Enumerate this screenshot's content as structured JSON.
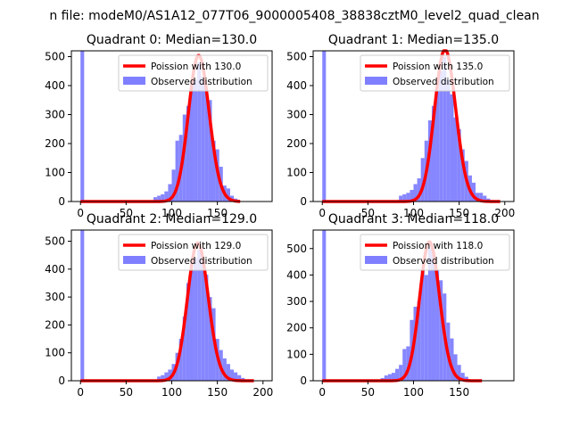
{
  "figure_title": "n file: modeM0/AS1A12_077T06_9000005408_38838cztM0_level2_quad_clean",
  "colors": {
    "poisson": "#ff0000",
    "observed": "#7f7fff",
    "axis": "#000000"
  },
  "chart_data": [
    {
      "type": "bar",
      "title": "Quadrant 0: Median=130.0",
      "median": 130.0,
      "xlim": [
        -10,
        210
      ],
      "ylim": [
        0,
        520
      ],
      "xticks": [
        0,
        50,
        100,
        150
      ],
      "yticks": [
        0,
        100,
        200,
        300,
        400,
        500
      ],
      "bin_width": 4,
      "legend": {
        "position": "top-right",
        "entries": [
          "Poission with 130.0",
          "Observed distribution"
        ]
      },
      "series": [
        {
          "name": "Poission with 130.0",
          "type": "line",
          "x_range": [
            0,
            175
          ]
        },
        {
          "name": "Observed distribution",
          "type": "hist",
          "bins": [
            {
              "x": 0,
              "y": 520
            },
            {
              "x": 80,
              "y": 15
            },
            {
              "x": 84,
              "y": 20
            },
            {
              "x": 88,
              "y": 25
            },
            {
              "x": 92,
              "y": 35
            },
            {
              "x": 96,
              "y": 60
            },
            {
              "x": 100,
              "y": 110
            },
            {
              "x": 104,
              "y": 210
            },
            {
              "x": 108,
              "y": 230
            },
            {
              "x": 112,
              "y": 300
            },
            {
              "x": 116,
              "y": 330
            },
            {
              "x": 120,
              "y": 400
            },
            {
              "x": 124,
              "y": 420
            },
            {
              "x": 128,
              "y": 480
            },
            {
              "x": 132,
              "y": 430
            },
            {
              "x": 136,
              "y": 380
            },
            {
              "x": 140,
              "y": 350
            },
            {
              "x": 144,
              "y": 210
            },
            {
              "x": 148,
              "y": 180
            },
            {
              "x": 152,
              "y": 120
            },
            {
              "x": 156,
              "y": 55
            },
            {
              "x": 160,
              "y": 45
            },
            {
              "x": 164,
              "y": 20
            },
            {
              "x": 168,
              "y": 10
            }
          ]
        }
      ]
    },
    {
      "type": "bar",
      "title": "Quadrant 1: Median=135.0",
      "median": 135.0,
      "xlim": [
        -10,
        210
      ],
      "ylim": [
        0,
        520
      ],
      "xticks": [
        0,
        50,
        100,
        150,
        200
      ],
      "yticks": [
        0,
        100,
        200,
        300,
        400,
        500
      ],
      "bin_width": 4,
      "legend": {
        "position": "top-right",
        "entries": [
          "Poission with 135.0",
          "Observed distribution"
        ]
      },
      "series": [
        {
          "name": "Poission with 135.0",
          "type": "line",
          "x_range": [
            0,
            195
          ]
        },
        {
          "name": "Observed distribution",
          "type": "hist",
          "bins": [
            {
              "x": 0,
              "y": 520
            },
            {
              "x": 84,
              "y": 20
            },
            {
              "x": 88,
              "y": 25
            },
            {
              "x": 92,
              "y": 30
            },
            {
              "x": 96,
              "y": 40
            },
            {
              "x": 100,
              "y": 60
            },
            {
              "x": 104,
              "y": 80
            },
            {
              "x": 108,
              "y": 150
            },
            {
              "x": 112,
              "y": 210
            },
            {
              "x": 116,
              "y": 280
            },
            {
              "x": 120,
              "y": 330
            },
            {
              "x": 124,
              "y": 380
            },
            {
              "x": 128,
              "y": 450
            },
            {
              "x": 132,
              "y": 500
            },
            {
              "x": 136,
              "y": 420
            },
            {
              "x": 140,
              "y": 370
            },
            {
              "x": 144,
              "y": 290
            },
            {
              "x": 148,
              "y": 250
            },
            {
              "x": 152,
              "y": 180
            },
            {
              "x": 156,
              "y": 140
            },
            {
              "x": 160,
              "y": 90
            },
            {
              "x": 164,
              "y": 65
            },
            {
              "x": 168,
              "y": 30
            },
            {
              "x": 172,
              "y": 30
            },
            {
              "x": 176,
              "y": 20
            },
            {
              "x": 180,
              "y": 10
            },
            {
              "x": 184,
              "y": 5
            }
          ]
        }
      ]
    },
    {
      "type": "bar",
      "title": "Quadrant 2: Median=129.0",
      "median": 129.0,
      "xlim": [
        -10,
        210
      ],
      "ylim": [
        0,
        540
      ],
      "xticks": [
        0,
        50,
        100,
        150,
        200
      ],
      "yticks": [
        0,
        100,
        200,
        300,
        400,
        500
      ],
      "bin_width": 4,
      "legend": {
        "position": "top-right",
        "entries": [
          "Poission with 129.0",
          "Observed distribution"
        ]
      },
      "series": [
        {
          "name": "Poission with 129.0",
          "type": "line",
          "x_range": [
            0,
            190
          ]
        },
        {
          "name": "Observed distribution",
          "type": "hist",
          "bins": [
            {
              "x": 0,
              "y": 540
            },
            {
              "x": 84,
              "y": 15
            },
            {
              "x": 88,
              "y": 20
            },
            {
              "x": 92,
              "y": 30
            },
            {
              "x": 96,
              "y": 40
            },
            {
              "x": 100,
              "y": 60
            },
            {
              "x": 104,
              "y": 100
            },
            {
              "x": 108,
              "y": 150
            },
            {
              "x": 112,
              "y": 230
            },
            {
              "x": 116,
              "y": 350
            },
            {
              "x": 120,
              "y": 400
            },
            {
              "x": 124,
              "y": 440
            },
            {
              "x": 128,
              "y": 470
            },
            {
              "x": 132,
              "y": 430
            },
            {
              "x": 136,
              "y": 380
            },
            {
              "x": 140,
              "y": 300
            },
            {
              "x": 144,
              "y": 260
            },
            {
              "x": 148,
              "y": 150
            },
            {
              "x": 152,
              "y": 110
            },
            {
              "x": 156,
              "y": 80
            },
            {
              "x": 160,
              "y": 60
            },
            {
              "x": 164,
              "y": 40
            },
            {
              "x": 168,
              "y": 30
            },
            {
              "x": 172,
              "y": 20
            },
            {
              "x": 176,
              "y": 10
            }
          ]
        }
      ]
    },
    {
      "type": "bar",
      "title": "Quadrant 3: Median=118.0",
      "median": 118.0,
      "xlim": [
        -10,
        210
      ],
      "ylim": [
        0,
        570
      ],
      "xticks": [
        0,
        50,
        100,
        150
      ],
      "yticks": [
        0,
        100,
        200,
        300,
        400,
        500
      ],
      "bin_width": 4,
      "legend": {
        "position": "top-right",
        "entries": [
          "Poission with 118.0",
          "Observed distribution"
        ]
      },
      "series": [
        {
          "name": "Poission with 118.0",
          "type": "line",
          "x_range": [
            0,
            175
          ]
        },
        {
          "name": "Observed distribution",
          "type": "hist",
          "bins": [
            {
              "x": 0,
              "y": 570
            },
            {
              "x": 64,
              "y": 10
            },
            {
              "x": 68,
              "y": 20
            },
            {
              "x": 72,
              "y": 25
            },
            {
              "x": 76,
              "y": 30
            },
            {
              "x": 80,
              "y": 45
            },
            {
              "x": 84,
              "y": 60
            },
            {
              "x": 88,
              "y": 120
            },
            {
              "x": 92,
              "y": 130
            },
            {
              "x": 96,
              "y": 230
            },
            {
              "x": 100,
              "y": 280
            },
            {
              "x": 104,
              "y": 300
            },
            {
              "x": 108,
              "y": 420
            },
            {
              "x": 112,
              "y": 400
            },
            {
              "x": 116,
              "y": 500
            },
            {
              "x": 120,
              "y": 480
            },
            {
              "x": 124,
              "y": 420
            },
            {
              "x": 128,
              "y": 380
            },
            {
              "x": 132,
              "y": 330
            },
            {
              "x": 136,
              "y": 220
            },
            {
              "x": 140,
              "y": 160
            },
            {
              "x": 144,
              "y": 100
            },
            {
              "x": 148,
              "y": 60
            },
            {
              "x": 152,
              "y": 30
            },
            {
              "x": 156,
              "y": 15
            }
          ]
        }
      ]
    }
  ]
}
